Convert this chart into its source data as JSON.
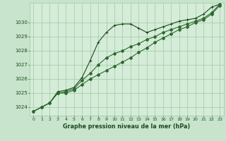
{
  "title": "Graphe pression niveau de la mer (hPa)",
  "background_color": "#c8e4cc",
  "plot_bg_color": "#d4ecd8",
  "grid_color": "#a0c8a4",
  "line_color_dark": "#1a4a1a",
  "line_color_mid": "#2d6a2d",
  "xlim": [
    -0.5,
    23.5
  ],
  "ylim": [
    1023.4,
    1031.4
  ],
  "yticks": [
    1024,
    1025,
    1026,
    1027,
    1028,
    1029,
    1030
  ],
  "xticks": [
    0,
    1,
    2,
    3,
    4,
    5,
    6,
    7,
    8,
    9,
    10,
    11,
    12,
    13,
    14,
    15,
    16,
    17,
    18,
    19,
    20,
    21,
    22,
    23
  ],
  "hours": [
    0,
    1,
    2,
    3,
    4,
    5,
    6,
    7,
    8,
    9,
    10,
    11,
    12,
    13,
    14,
    15,
    16,
    17,
    18,
    19,
    20,
    21,
    22,
    23
  ],
  "line_top": [
    1023.7,
    1024.0,
    1024.3,
    1025.1,
    1025.2,
    1025.4,
    1026.1,
    1027.3,
    1028.6,
    1029.3,
    1029.8,
    1029.9,
    1029.9,
    1029.6,
    1029.3,
    1029.5,
    1029.7,
    1029.9,
    1030.1,
    1030.2,
    1030.3,
    1030.6,
    1031.1,
    1031.3
  ],
  "line_mid": [
    1023.7,
    1024.0,
    1024.3,
    1025.0,
    1025.1,
    1025.3,
    1025.9,
    1026.4,
    1027.0,
    1027.5,
    1027.8,
    1028.0,
    1028.3,
    1028.5,
    1028.8,
    1029.0,
    1029.3,
    1029.5,
    1029.7,
    1029.9,
    1030.1,
    1030.3,
    1030.7,
    1031.3
  ],
  "line_bot": [
    1023.7,
    1024.0,
    1024.3,
    1025.0,
    1025.0,
    1025.2,
    1025.6,
    1026.0,
    1026.3,
    1026.6,
    1026.9,
    1027.2,
    1027.5,
    1027.9,
    1028.2,
    1028.6,
    1028.9,
    1029.2,
    1029.5,
    1029.7,
    1030.0,
    1030.2,
    1030.6,
    1031.2
  ]
}
